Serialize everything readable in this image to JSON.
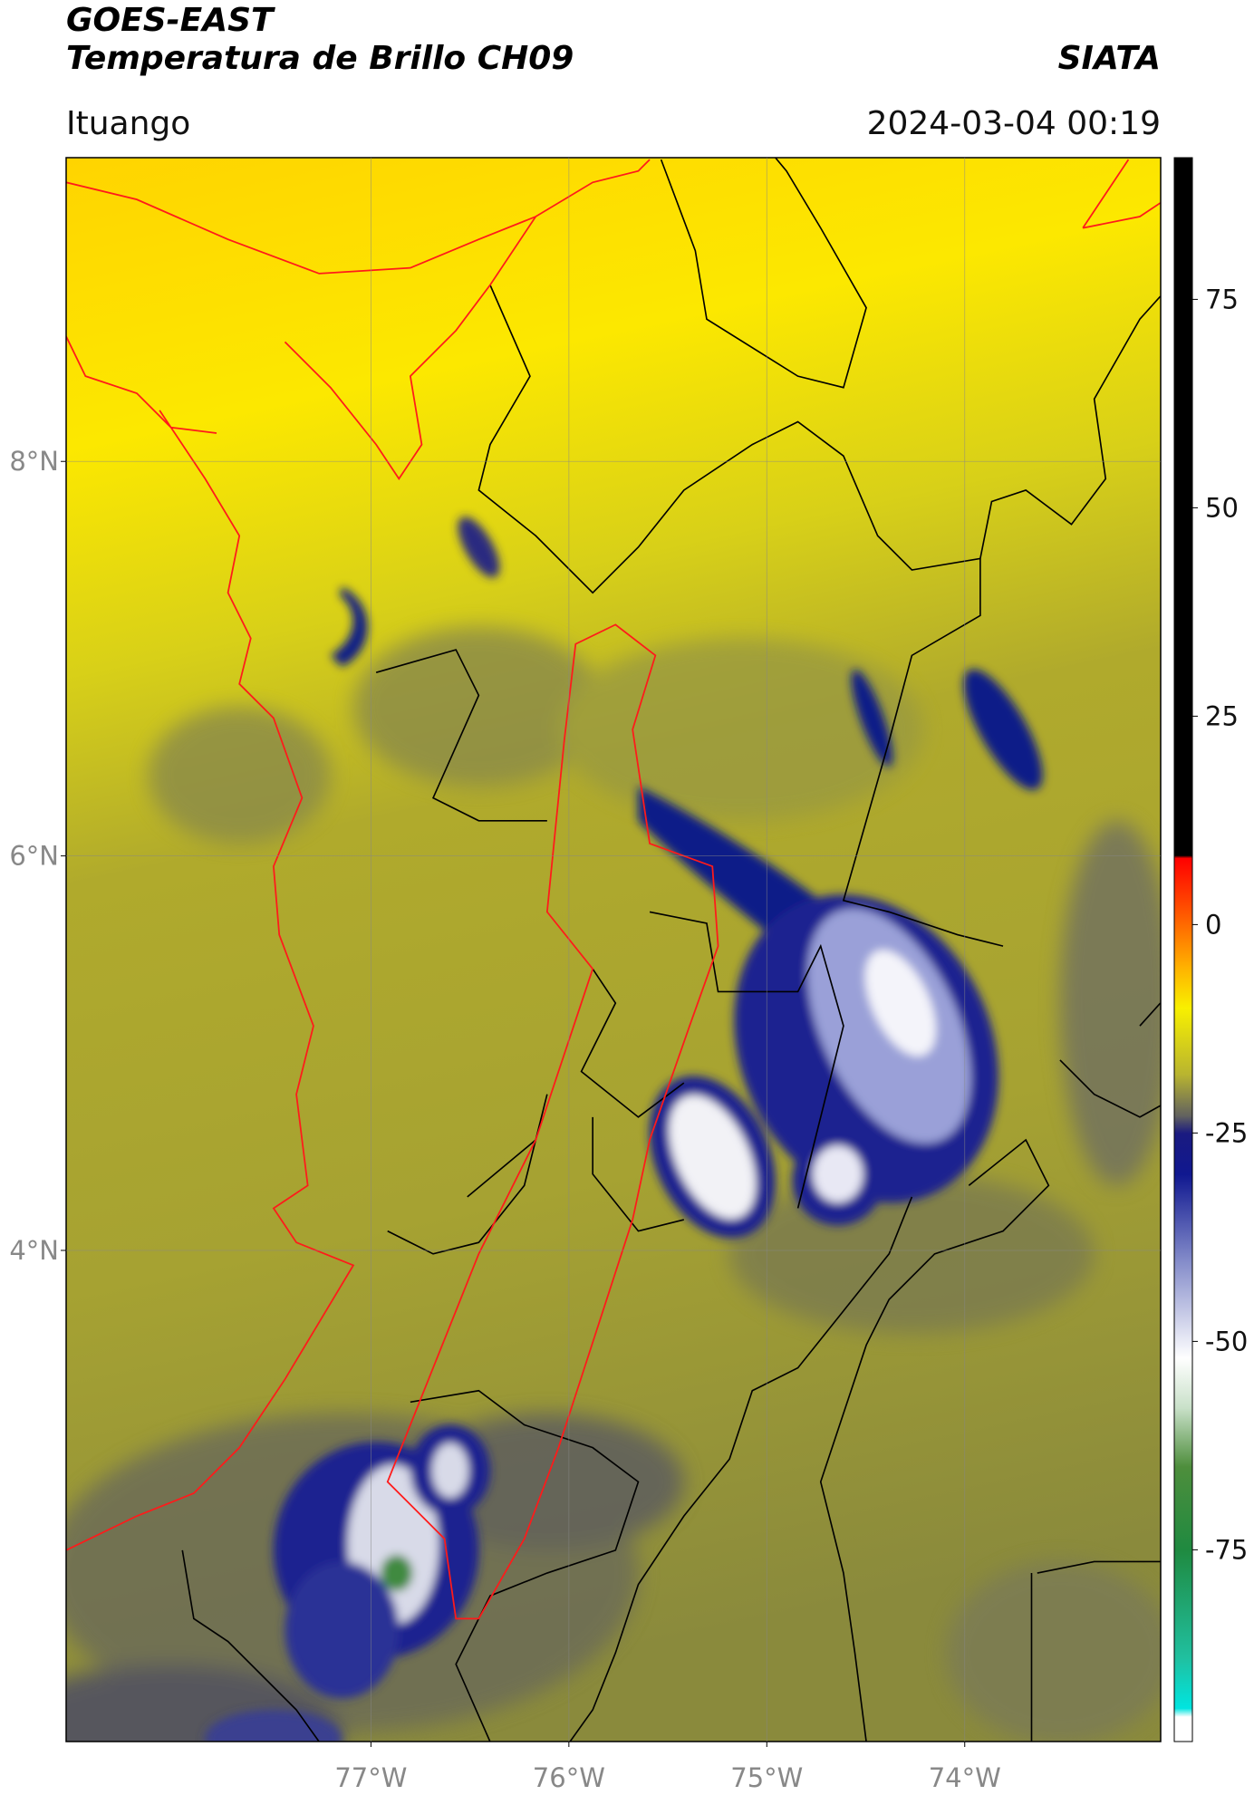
{
  "header": {
    "title": "GOES-EAST",
    "subtitle": "Temperatura de Brillo CH09",
    "source": "SIATA",
    "region": "Ituango",
    "timestamp": "2024-03-04 00:19"
  },
  "map": {
    "xlim": [
      -78.54,
      -73.01
    ],
    "ylim": [
      1.51,
      9.54
    ],
    "xticks": [
      {
        "value": -77,
        "label": "77°W"
      },
      {
        "value": -76,
        "label": "76°W"
      },
      {
        "value": -75,
        "label": "75°W"
      },
      {
        "value": -74,
        "label": "74°W"
      }
    ],
    "yticks": [
      {
        "value": 8,
        "label": "8°N"
      },
      {
        "value": 6,
        "label": "6°N"
      },
      {
        "value": 4,
        "label": "4°N"
      }
    ],
    "grid": true
  },
  "colorbar": {
    "lim": [
      -98,
      92
    ],
    "ticks": [
      75,
      50,
      25,
      0,
      -25,
      -50,
      -75
    ],
    "stops": [
      {
        "value": -98,
        "color": "#ffffff"
      },
      {
        "value": -95,
        "color": "#ffffff"
      },
      {
        "value": -94,
        "color": "#00e5e0"
      },
      {
        "value": -88,
        "color": "#20c0a0"
      },
      {
        "value": -75,
        "color": "#1f8a40"
      },
      {
        "value": -65,
        "color": "#4e8e3c"
      },
      {
        "value": -58,
        "color": "#c8e0c8"
      },
      {
        "value": -52,
        "color": "#ffffff"
      },
      {
        "value": -40,
        "color": "#8088c8"
      },
      {
        "value": -30,
        "color": "#101890"
      },
      {
        "value": -25,
        "color": "#1a1a80"
      },
      {
        "value": -23,
        "color": "#606060"
      },
      {
        "value": -18,
        "color": "#b8b430"
      },
      {
        "value": -10,
        "color": "#f8f000"
      },
      {
        "value": -5,
        "color": "#ffb000"
      },
      {
        "value": 3,
        "color": "#ff4000"
      },
      {
        "value": 8,
        "color": "#ff0000"
      },
      {
        "value": 8.3,
        "color": "#000000"
      },
      {
        "value": 92,
        "color": "#000000"
      }
    ]
  }
}
